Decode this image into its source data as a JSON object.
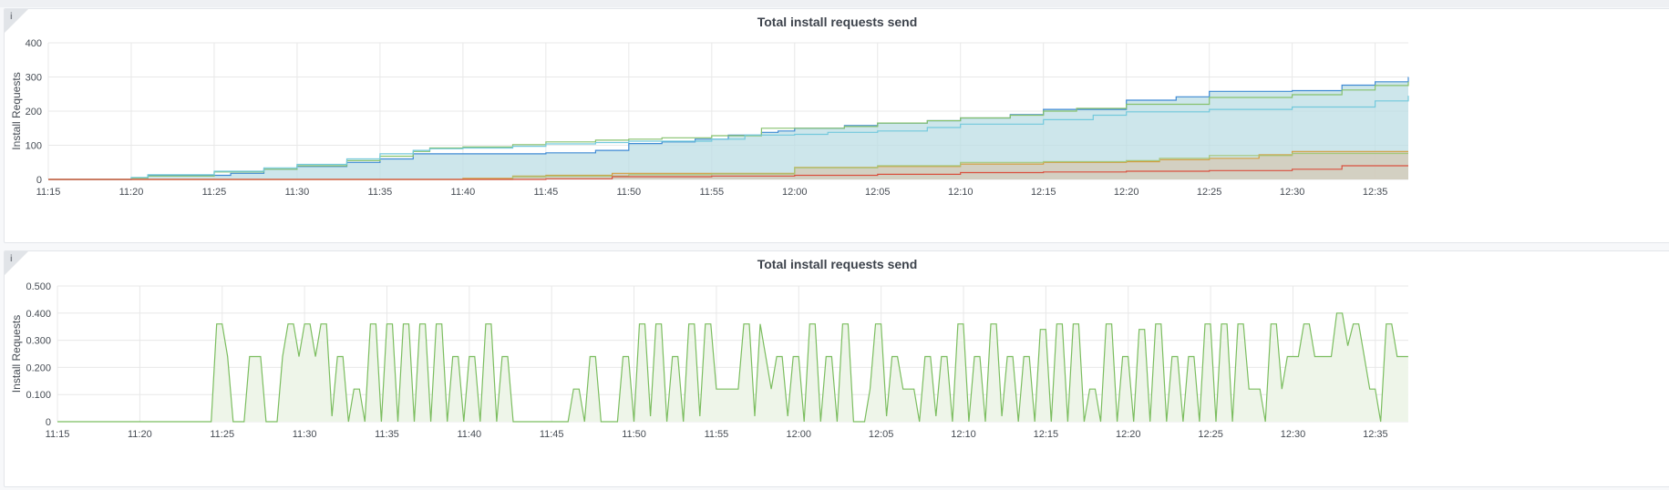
{
  "panels": [
    {
      "title": "Total install requests send",
      "info_icon": "info-icon",
      "info_label": "i"
    },
    {
      "title": "Total install requests send",
      "info_icon": "info-icon",
      "info_label": "i"
    }
  ],
  "chart_data": [
    {
      "type": "line",
      "title": "Total install requests send",
      "ylabel": "Install Requests",
      "xlabel": "",
      "xlim": [
        "11:15",
        "12:37"
      ],
      "ylim": [
        0,
        400
      ],
      "yticks": [
        "0",
        "100",
        "200",
        "300",
        "400"
      ],
      "xticks": [
        "11:15",
        "11:20",
        "11:25",
        "11:30",
        "11:35",
        "11:40",
        "11:45",
        "11:50",
        "11:55",
        "12:00",
        "12:05",
        "12:10",
        "12:15",
        "12:20",
        "12:25",
        "12:30",
        "12:35"
      ],
      "grid": true,
      "stacked": false,
      "colors": {
        "grid": "#e8e8e8",
        "fill": "#bcdde4"
      },
      "series": [
        {
          "color": "#3f8ad4",
          "x": [
            "11:15",
            "11:19",
            "11:20",
            "11:21",
            "11:26",
            "11:28",
            "11:30",
            "11:33",
            "11:35",
            "11:37",
            "11:45",
            "11:48",
            "11:50",
            "11:52",
            "11:54",
            "11:56",
            "11:58",
            "11:59",
            "12:00",
            "12:03",
            "12:05",
            "12:08",
            "12:10",
            "12:13",
            "12:15",
            "12:20",
            "12:23",
            "12:25",
            "12:30",
            "12:33",
            "12:35",
            "12:37"
          ],
          "values": [
            0,
            0,
            5,
            12,
            18,
            30,
            38,
            50,
            60,
            75,
            78,
            85,
            105,
            110,
            118,
            130,
            138,
            142,
            150,
            158,
            165,
            172,
            180,
            190,
            205,
            232,
            242,
            258,
            260,
            276,
            286,
            300
          ]
        },
        {
          "color": "#86c16d",
          "x": [
            "11:15",
            "11:19",
            "11:20",
            "11:21",
            "11:25",
            "11:28",
            "11:30",
            "11:33",
            "11:35",
            "11:37",
            "11:38",
            "11:40",
            "11:43",
            "11:45",
            "11:48",
            "11:50",
            "11:52",
            "11:55",
            "11:58",
            "12:00",
            "12:03",
            "12:05",
            "12:08",
            "12:10",
            "12:13",
            "12:15",
            "12:17",
            "12:20",
            "12:25",
            "12:30",
            "12:33",
            "12:35",
            "12:37"
          ],
          "values": [
            0,
            0,
            4,
            10,
            22,
            30,
            40,
            55,
            68,
            82,
            92,
            95,
            102,
            110,
            115,
            118,
            122,
            128,
            150,
            150,
            155,
            165,
            172,
            180,
            188,
            200,
            208,
            220,
            240,
            248,
            262,
            275,
            286
          ]
        },
        {
          "color": "#73c9dc",
          "x": [
            "11:15",
            "11:19",
            "11:20",
            "11:21",
            "11:25",
            "11:28",
            "11:30",
            "11:33",
            "11:35",
            "11:37",
            "11:38",
            "11:40",
            "11:43",
            "11:45",
            "11:48",
            "11:50",
            "11:55",
            "11:57",
            "12:00",
            "12:02",
            "12:05",
            "12:08",
            "12:10",
            "12:15",
            "12:18",
            "12:20",
            "12:25",
            "12:30",
            "12:35",
            "12:37"
          ],
          "values": [
            0,
            0,
            6,
            14,
            24,
            34,
            44,
            60,
            75,
            85,
            90,
            92,
            97,
            104,
            108,
            112,
            118,
            130,
            132,
            138,
            142,
            152,
            162,
            175,
            188,
            198,
            205,
            212,
            230,
            245
          ]
        },
        {
          "color": "#d39d3f",
          "x": [
            "11:15",
            "11:39",
            "11:40",
            "11:43",
            "11:45",
            "11:49",
            "11:55",
            "12:00",
            "12:05",
            "12:10",
            "12:15",
            "12:20",
            "12:22",
            "12:25",
            "12:28",
            "12:30",
            "12:35",
            "12:37"
          ],
          "values": [
            0,
            0,
            3,
            10,
            12,
            18,
            18,
            35,
            38,
            45,
            50,
            52,
            58,
            62,
            72,
            82,
            82,
            82
          ]
        },
        {
          "color": "#a5c77a",
          "x": [
            "11:15",
            "11:40",
            "11:43",
            "11:45",
            "11:50",
            "11:55",
            "12:00",
            "12:05",
            "12:10",
            "12:15",
            "12:20",
            "12:22",
            "12:25",
            "12:30",
            "12:37"
          ],
          "values": [
            0,
            0,
            8,
            10,
            14,
            16,
            34,
            40,
            50,
            52,
            55,
            62,
            70,
            76,
            76
          ]
        },
        {
          "color": "#d9503f",
          "x": [
            "11:15",
            "11:40",
            "11:45",
            "11:49",
            "11:55",
            "12:00",
            "12:05",
            "12:10",
            "12:15",
            "12:20",
            "12:25",
            "12:30",
            "12:33",
            "12:37"
          ],
          "values": [
            0,
            0,
            2,
            8,
            10,
            12,
            15,
            20,
            22,
            24,
            26,
            30,
            40,
            40
          ]
        }
      ]
    },
    {
      "type": "area",
      "title": "Total install requests send",
      "ylabel": "Install Requests",
      "xlabel": "",
      "xlim": [
        "11:15",
        "12:37"
      ],
      "ylim": [
        0,
        0.5
      ],
      "yticks": [
        "0",
        "0.100",
        "0.200",
        "0.300",
        "0.400",
        "0.500"
      ],
      "xticks": [
        "11:15",
        "11:20",
        "11:25",
        "11:30",
        "11:35",
        "11:40",
        "11:45",
        "11:50",
        "11:55",
        "12:00",
        "12:05",
        "12:10",
        "12:15",
        "12:20",
        "12:25",
        "12:30",
        "12:35"
      ],
      "grid": true,
      "colors": {
        "line": "#7bbd5f",
        "fill": "#eef5e9",
        "grid": "#e8e8e8"
      },
      "series": [
        {
          "color": "#7bbd5f",
          "x_start": "11:15",
          "x_step_minutes": 0.3333,
          "values": [
            0,
            0,
            0,
            0,
            0,
            0,
            0,
            0,
            0,
            0,
            0,
            0,
            0,
            0,
            0,
            0,
            0,
            0,
            0,
            0,
            0,
            0,
            0,
            0,
            0,
            0,
            0,
            0,
            0,
            0.36,
            0.36,
            0.24,
            0,
            0,
            0,
            0.24,
            0.24,
            0.24,
            0,
            0,
            0,
            0.24,
            0.36,
            0.36,
            0.24,
            0.36,
            0.36,
            0.24,
            0.36,
            0.36,
            0.02,
            0.24,
            0.24,
            0,
            0.12,
            0.12,
            0,
            0.36,
            0.36,
            0,
            0.36,
            0.36,
            0,
            0.36,
            0.36,
            0,
            0.36,
            0.36,
            0,
            0.36,
            0.36,
            0,
            0.24,
            0.24,
            0,
            0.24,
            0.24,
            0,
            0.36,
            0.36,
            0,
            0.24,
            0.24,
            0,
            0,
            0,
            0,
            0,
            0,
            0,
            0,
            0,
            0,
            0,
            0.12,
            0.12,
            0,
            0.24,
            0.24,
            0,
            0,
            0,
            0,
            0.24,
            0.24,
            0,
            0.36,
            0.36,
            0.02,
            0.36,
            0.36,
            0,
            0.24,
            0.24,
            0,
            0.36,
            0.36,
            0.02,
            0.36,
            0.36,
            0.12,
            0.12,
            0.12,
            0.12,
            0.12,
            0.36,
            0.36,
            0.02,
            0.36,
            0.24,
            0.12,
            0.24,
            0.24,
            0.02,
            0.24,
            0.24,
            0,
            0.36,
            0.36,
            0,
            0.24,
            0.24,
            0,
            0.36,
            0.36,
            0,
            0,
            0,
            0.12,
            0.36,
            0.36,
            0.02,
            0.24,
            0.24,
            0.12,
            0.12,
            0.12,
            0,
            0.24,
            0.24,
            0.02,
            0.24,
            0.24,
            0,
            0.36,
            0.36,
            0,
            0.24,
            0.24,
            0,
            0.36,
            0.36,
            0.02,
            0.24,
            0.24,
            0,
            0.24,
            0.24,
            0,
            0.34,
            0.34,
            0,
            0.36,
            0.36,
            0,
            0.36,
            0.36,
            0,
            0.12,
            0.12,
            0,
            0.36,
            0.36,
            0,
            0.24,
            0.24,
            0,
            0.34,
            0.34,
            0,
            0.36,
            0.36,
            0,
            0.24,
            0.24,
            0,
            0.24,
            0.24,
            0,
            0.36,
            0.36,
            0,
            0.36,
            0.36,
            0,
            0.36,
            0.36,
            0.12,
            0.12,
            0.12,
            0,
            0.36,
            0.36,
            0.12,
            0.24,
            0.24,
            0.24,
            0.36,
            0.36,
            0.24,
            0.24,
            0.24,
            0.24,
            0.4,
            0.4,
            0.28,
            0.36,
            0.36,
            0.24,
            0.12,
            0.12,
            0,
            0.36,
            0.36,
            0.24,
            0.24,
            0.24,
            0.12,
            0.24,
            0.24,
            0.12,
            0.36,
            0.36,
            0.24,
            0.36,
            0.36
          ]
        }
      ]
    }
  ]
}
